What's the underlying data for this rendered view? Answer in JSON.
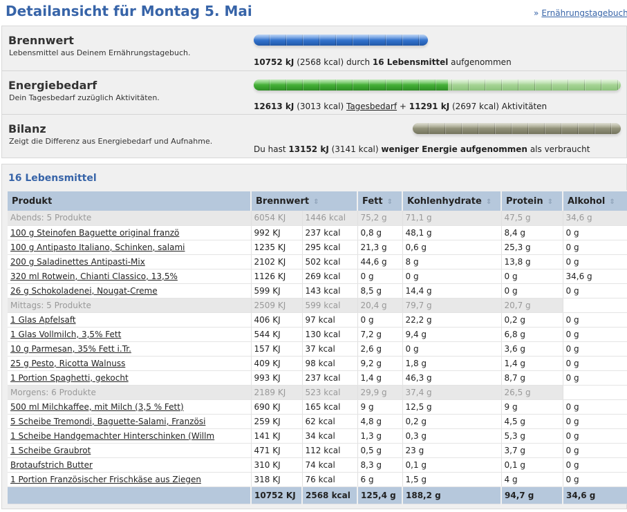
{
  "page": {
    "title": "Detailansicht für Montag 5. Mai",
    "link_arrow": "»",
    "link_label": "Ernährungstagebuch"
  },
  "summary": {
    "brennwert": {
      "title": "Brennwert",
      "description": "Lebensmittel aus Deinem Ernährungstagebuch.",
      "kj": "10752 kJ",
      "kcal": "(2568 kcal)",
      "text1": "durch",
      "count": "16 Lebensmittel",
      "text2": "aufgenommen",
      "bar_color": "#2f6ec8"
    },
    "energiebedarf": {
      "title": "Energiebedarf",
      "description": "Dein Tagesbedarf zuzüglich Aktivitäten.",
      "kj1": "12613 kJ",
      "kcal1": "(3013 kcal)",
      "link": "Tagesbedarf",
      "plus": "+",
      "kj2": "11291 kJ",
      "kcal2": "(2697 kcal)",
      "suffix": "Aktivitäten",
      "bar_color": "#3ea932",
      "bar_light_color": "#9fd08e",
      "filled_fraction": 0.53
    },
    "bilanz": {
      "title": "Bilanz",
      "description": "Zeigt die Differenz aus Energiebedarf und Aufnahme.",
      "prefix": "Du hast",
      "kj": "13152 kJ",
      "kcal": "(3141 kcal)",
      "emphasis": "weniger Energie aufgenommen",
      "suffix": "als verbraucht",
      "bar_color": "#8c8c74"
    }
  },
  "list": {
    "title": "16 Lebensmittel",
    "headers": {
      "produkt": "Produkt",
      "brennwert": "Brennwert",
      "fett": "Fett",
      "kohlenhydrate": "Kohlenhydrate",
      "protein": "Protein",
      "alkohol": "Alkohol"
    },
    "sort_icon": "⇕",
    "rows": [
      {
        "type": "group",
        "name": "Abends: 5 Produkte",
        "kj": "6054 KJ",
        "kcal": "1446 kcal",
        "fett": "75,2 g",
        "kh": "71,1 g",
        "protein": "47,5 g",
        "alkohol": "34,6 g"
      },
      {
        "type": "item",
        "name": "100 g Steinofen Baguette original franzö",
        "kj": "992 KJ",
        "kcal": "237 kcal",
        "fett": "0,8 g",
        "kh": "48,1 g",
        "protein": "8,4 g",
        "alkohol": "0 g"
      },
      {
        "type": "item",
        "name": "100 g Antipasto Italiano, Schinken, salami",
        "kj": "1235 KJ",
        "kcal": "295 kcal",
        "fett": "21,3 g",
        "kh": "0,6 g",
        "protein": "25,3 g",
        "alkohol": "0 g"
      },
      {
        "type": "item",
        "name": "200 g Saladinettes Antipasti-Mix",
        "kj": "2102 KJ",
        "kcal": "502 kcal",
        "fett": "44,6 g",
        "kh": "8 g",
        "protein": "13,8 g",
        "alkohol": "0 g"
      },
      {
        "type": "item",
        "name": "320 ml Rotwein, Chianti Classico, 13,5%",
        "kj": "1126 KJ",
        "kcal": "269 kcal",
        "fett": "0 g",
        "kh": "0 g",
        "protein": "0 g",
        "alkohol": "34,6 g"
      },
      {
        "type": "item",
        "name": "26 g Schokoladenei, Nougat-Creme",
        "kj": "599 KJ",
        "kcal": "143 kcal",
        "fett": "8,5 g",
        "kh": "14,4 g",
        "protein": "0 g",
        "alkohol": "0 g"
      },
      {
        "type": "group",
        "name": "Mittags: 5 Produkte",
        "kj": "2509 KJ",
        "kcal": "599 kcal",
        "fett": "20,4 g",
        "kh": "79,7 g",
        "protein": "20,7 g",
        "alkohol": ""
      },
      {
        "type": "item",
        "name": "1 Glas Apfelsaft",
        "kj": "406 KJ",
        "kcal": "97 kcal",
        "fett": "0 g",
        "kh": "22,2 g",
        "protein": "0,2 g",
        "alkohol": "0 g"
      },
      {
        "type": "item",
        "name": "1 Glas Vollmilch, 3,5% Fett",
        "kj": "544 KJ",
        "kcal": "130 kcal",
        "fett": "7,2 g",
        "kh": "9,4 g",
        "protein": "6,8 g",
        "alkohol": "0 g"
      },
      {
        "type": "item",
        "name": "10 g Parmesan, 35% Fett i.Tr.",
        "kj": "157 KJ",
        "kcal": "37 kcal",
        "fett": "2,6 g",
        "kh": "0 g",
        "protein": "3,6 g",
        "alkohol": "0 g"
      },
      {
        "type": "item",
        "name": "25 g Pesto, Ricotta Walnuss",
        "kj": "409 KJ",
        "kcal": "98 kcal",
        "fett": "9,2 g",
        "kh": "1,8 g",
        "protein": "1,4 g",
        "alkohol": "0 g"
      },
      {
        "type": "item",
        "name": "1 Portion Spaghetti, gekocht",
        "kj": "993 KJ",
        "kcal": "237 kcal",
        "fett": "1,4 g",
        "kh": "46,3 g",
        "protein": "8,7 g",
        "alkohol": "0 g"
      },
      {
        "type": "group",
        "name": "Morgens: 6 Produkte",
        "kj": "2189 KJ",
        "kcal": "523 kcal",
        "fett": "29,9 g",
        "kh": "37,4 g",
        "protein": "26,5 g",
        "alkohol": ""
      },
      {
        "type": "item",
        "name": "500 ml Milchkaffee, mit Milch (3,5 % Fett)",
        "kj": "690 KJ",
        "kcal": "165 kcal",
        "fett": "9 g",
        "kh": "12,5 g",
        "protein": "9 g",
        "alkohol": "0 g"
      },
      {
        "type": "item",
        "name": "5 Scheibe Tremondi, Baguette-Salami, Französi",
        "kj": "259 KJ",
        "kcal": "62 kcal",
        "fett": "4,8 g",
        "kh": "0,2 g",
        "protein": "4,5 g",
        "alkohol": "0 g"
      },
      {
        "type": "item",
        "name": "1 Scheibe Handgemachter Hinterschinken (Willm",
        "kj": "141 KJ",
        "kcal": "34 kcal",
        "fett": "1,3 g",
        "kh": "0,3 g",
        "protein": "5,3 g",
        "alkohol": "0 g"
      },
      {
        "type": "item",
        "name": "1 Scheibe Graubrot",
        "kj": "471 KJ",
        "kcal": "112 kcal",
        "fett": "0,5 g",
        "kh": "23 g",
        "protein": "3,7 g",
        "alkohol": "0 g"
      },
      {
        "type": "item",
        "name": "Brotaufstrich Butter",
        "kj": "310 KJ",
        "kcal": "74 kcal",
        "fett": "8,3 g",
        "kh": "0,1 g",
        "protein": "0,1 g",
        "alkohol": "0 g"
      },
      {
        "type": "item",
        "name": "1 Portion Französischer Frischkäse aus Ziegen",
        "kj": "318 KJ",
        "kcal": "76 kcal",
        "fett": "6 g",
        "kh": "1,5 g",
        "protein": "4 g",
        "alkohol": "0 g"
      }
    ],
    "total": {
      "name": "",
      "kj": "10752 KJ",
      "kcal": "2568 kcal",
      "fett": "125,4 g",
      "kh": "188,2 g",
      "protein": "94,7 g",
      "alkohol": "34,6 g"
    }
  }
}
